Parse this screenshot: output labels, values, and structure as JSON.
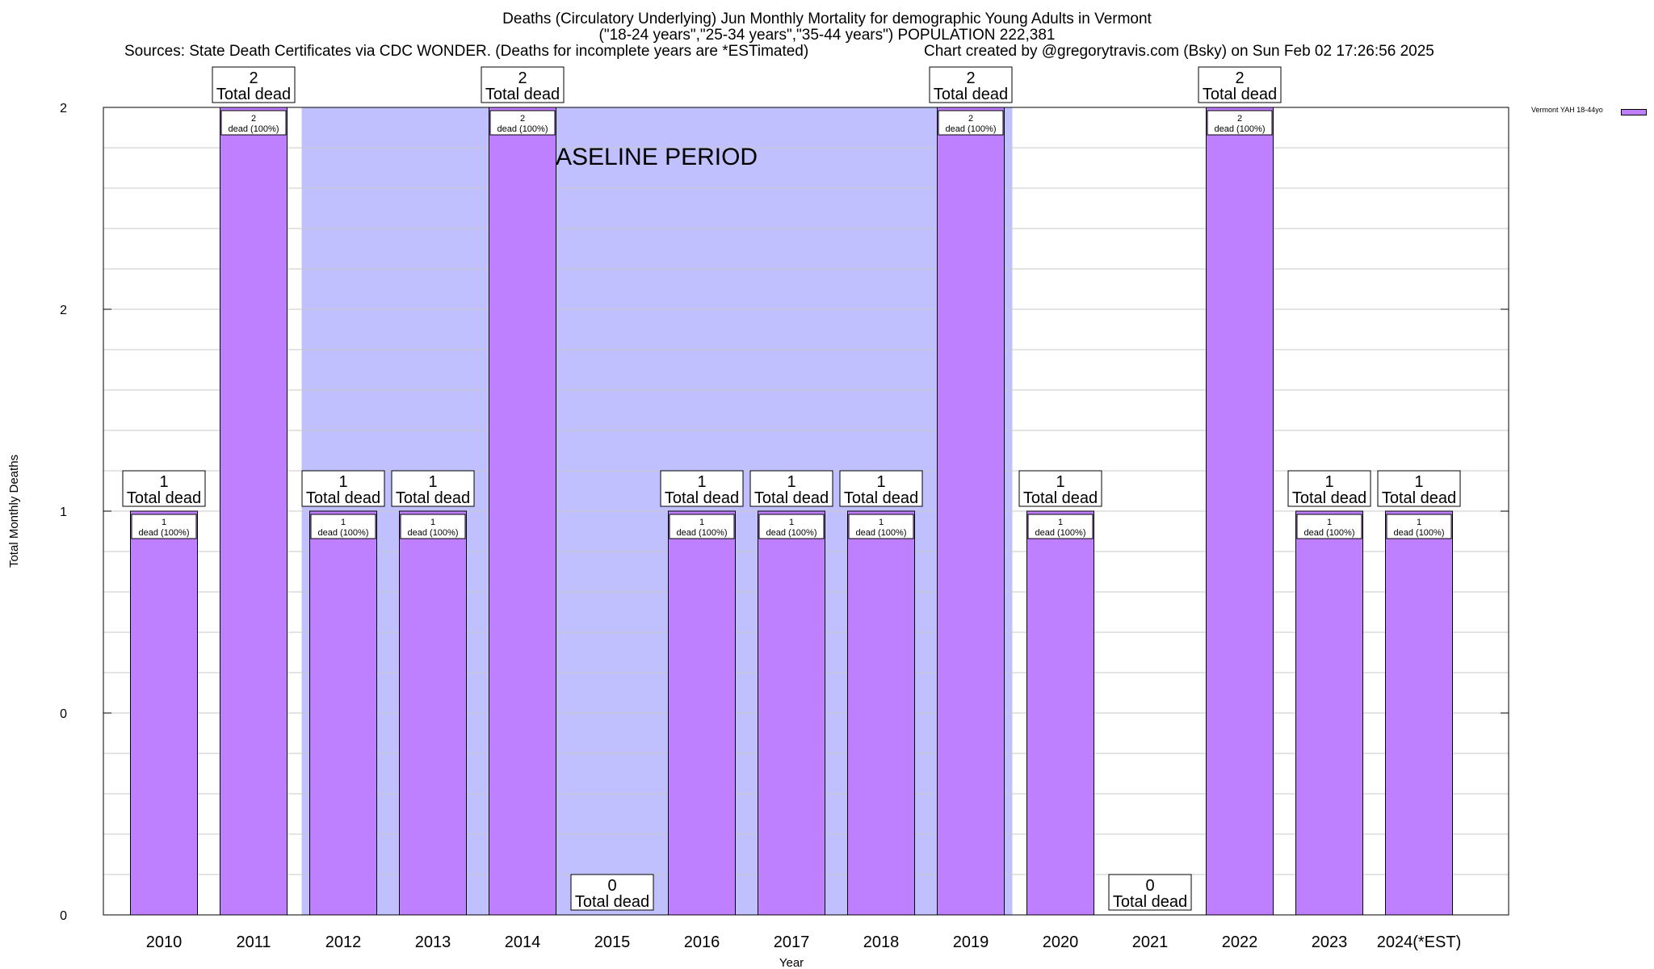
{
  "chart_data": {
    "type": "bar",
    "title_lines": [
      "Deaths (Circulatory Underlying) Jun Monthly Mortality for demographic Young Adults in Vermont",
      "(\"18-24 years\",\"25-34 years\",\"35-44 years\") POPULATION 222,381"
    ],
    "sources": "Sources: State Death Certificates via CDC WONDER. (Deaths for incomplete years are *ESTimated)",
    "credit": "Chart created by @gregorytravis.com (Bsky) on Sun Feb 02 17:26:56 2025",
    "xlabel": "Year",
    "ylabel": "Total Monthly Deaths",
    "ylim": [
      0,
      2
    ],
    "ytick_labels": [
      "0",
      "0",
      "1",
      "2",
      "2"
    ],
    "grid": true,
    "legend_position": "top-right",
    "series": [
      {
        "name": "Vermont YAH 18-44yo",
        "color": "#bf80ff"
      }
    ],
    "categories": [
      "2010",
      "2011",
      "2012",
      "2013",
      "2014",
      "2015",
      "2016",
      "2017",
      "2018",
      "2019",
      "2020",
      "2021",
      "2022",
      "2023",
      "2024(*EST)"
    ],
    "values": [
      1,
      2,
      1,
      1,
      2,
      0,
      1,
      1,
      1,
      2,
      1,
      0,
      2,
      1,
      1
    ],
    "total_label_suffix": "Total dead",
    "inner_label_suffix": "dead (100%)",
    "baseline": {
      "label": "BASELINE PERIOD",
      "start": "2012",
      "end": "2019",
      "color": "#c0c0ff"
    }
  }
}
